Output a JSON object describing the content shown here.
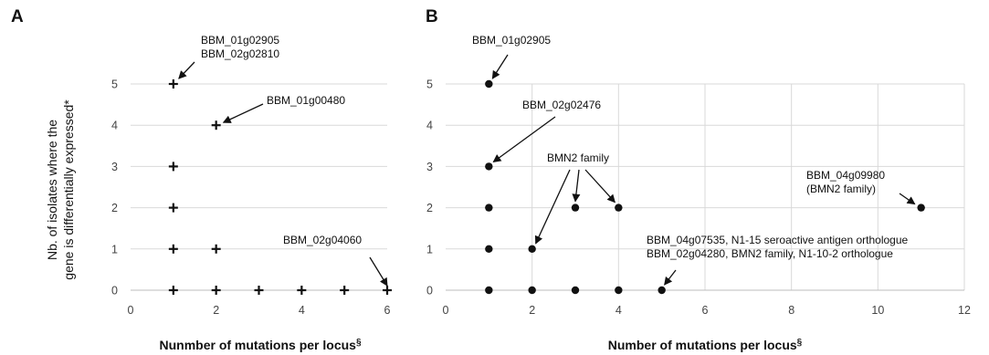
{
  "chart_data": [
    {
      "panel": "A",
      "type": "scatter",
      "marker": "plus",
      "xlabel": "Nunmber of mutations per locus",
      "xlabel_sup": "§",
      "ylabel_line1": "Nb. of isolates where the",
      "ylabel_line2": "gene is differentially expressed*",
      "xlim": [
        0,
        6
      ],
      "ylim": [
        0,
        5
      ],
      "xticks": [
        "0",
        "2",
        "4",
        "6"
      ],
      "yticks": [
        "0",
        "1",
        "2",
        "3",
        "4",
        "5"
      ],
      "grid": "horizontal",
      "points": [
        {
          "x": 1,
          "y": 5
        },
        {
          "x": 1,
          "y": 3
        },
        {
          "x": 1,
          "y": 2
        },
        {
          "x": 1,
          "y": 1
        },
        {
          "x": 1,
          "y": 0
        },
        {
          "x": 2,
          "y": 4
        },
        {
          "x": 2,
          "y": 1
        },
        {
          "x": 2,
          "y": 0
        },
        {
          "x": 3,
          "y": 0
        },
        {
          "x": 4,
          "y": 0
        },
        {
          "x": 5,
          "y": 0
        },
        {
          "x": 6,
          "y": 0
        }
      ],
      "annotations": [
        {
          "lines": [
            "BBM_01g02905",
            "BBM_02g02810"
          ],
          "target": {
            "x": 1,
            "y": 5
          }
        },
        {
          "lines": [
            "BBM_01g00480"
          ],
          "target": {
            "x": 2,
            "y": 4
          }
        },
        {
          "lines": [
            "BBM_02g04060"
          ],
          "target": {
            "x": 6,
            "y": 0
          }
        }
      ]
    },
    {
      "panel": "B",
      "type": "scatter",
      "marker": "dot",
      "xlabel": "Number of mutations per locus",
      "xlabel_sup": "§",
      "xlim": [
        0,
        12
      ],
      "ylim": [
        0,
        5
      ],
      "xticks": [
        "0",
        "2",
        "4",
        "6",
        "8",
        "10",
        "12"
      ],
      "yticks": [
        "0",
        "1",
        "2",
        "3",
        "4",
        "5"
      ],
      "grid": "both",
      "points": [
        {
          "x": 1,
          "y": 5
        },
        {
          "x": 1,
          "y": 3
        },
        {
          "x": 1,
          "y": 2
        },
        {
          "x": 1,
          "y": 1
        },
        {
          "x": 1,
          "y": 0
        },
        {
          "x": 2,
          "y": 1
        },
        {
          "x": 2,
          "y": 0
        },
        {
          "x": 3,
          "y": 2
        },
        {
          "x": 3,
          "y": 0
        },
        {
          "x": 4,
          "y": 2
        },
        {
          "x": 4,
          "y": 0
        },
        {
          "x": 5,
          "y": 0
        },
        {
          "x": 11,
          "y": 2
        }
      ],
      "annotations": [
        {
          "lines": [
            "BBM_01g02905"
          ],
          "target": {
            "x": 1,
            "y": 5
          }
        },
        {
          "lines": [
            "BBM_02g02476"
          ],
          "target": {
            "x": 1,
            "y": 3
          }
        },
        {
          "lines": [
            "BMN2 family"
          ],
          "targets": [
            {
              "x": 2,
              "y": 1
            },
            {
              "x": 3,
              "y": 2
            },
            {
              "x": 4,
              "y": 2
            }
          ]
        },
        {
          "lines": [
            "BBM_04g09980",
            "(BMN2 family)"
          ],
          "target": {
            "x": 11,
            "y": 2
          }
        },
        {
          "lines": [
            "BBM_04g07535, N1-15 seroactive antigen orthologue",
            "BBM_02g04280, BMN2 family, N1-10-2 orthologue"
          ],
          "target": {
            "x": 5,
            "y": 0
          }
        }
      ]
    }
  ]
}
